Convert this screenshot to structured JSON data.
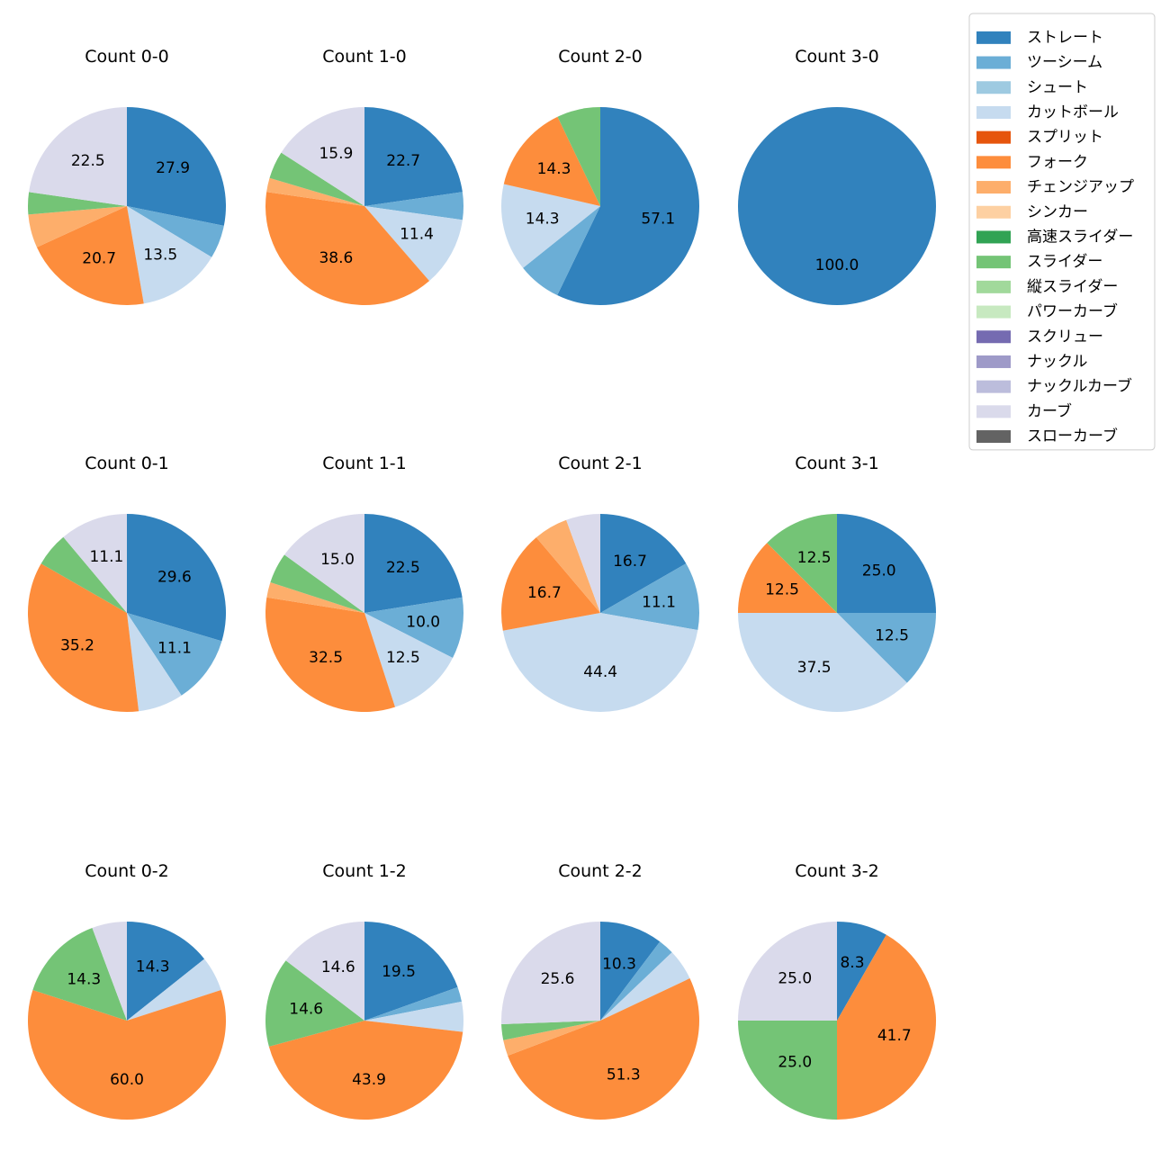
{
  "chart_data": {
    "type": "pie",
    "legend": {
      "placement": "top-right",
      "entries": [
        {
          "name": "ストレート",
          "color": "#3182bd"
        },
        {
          "name": "ツーシーム",
          "color": "#6baed6"
        },
        {
          "name": "シュート",
          "color": "#9ecae1"
        },
        {
          "name": "カットボール",
          "color": "#c6dbef"
        },
        {
          "name": "スプリット",
          "color": "#e6550d"
        },
        {
          "name": "フォーク",
          "color": "#fd8d3c"
        },
        {
          "name": "チェンジアップ",
          "color": "#fdae6b"
        },
        {
          "name": "シンカー",
          "color": "#fdd0a2"
        },
        {
          "name": "高速スライダー",
          "color": "#31a354"
        },
        {
          "name": "スライダー",
          "color": "#74c476"
        },
        {
          "name": "縦スライダー",
          "color": "#a1d99b"
        },
        {
          "name": "パワーカーブ",
          "color": "#c7e9c0"
        },
        {
          "name": "スクリュー",
          "color": "#756bb1"
        },
        {
          "name": "ナックル",
          "color": "#9e9ac8"
        },
        {
          "name": "ナックルカーブ",
          "color": "#bcbddc"
        },
        {
          "name": "カーブ",
          "color": "#dadaeb"
        },
        {
          "name": "スローカーブ",
          "color": "#636363"
        }
      ]
    },
    "charts": [
      {
        "title": "Count 0-0",
        "slices": [
          {
            "name": "ストレート",
            "value": 27.9,
            "label": "27.9"
          },
          {
            "name": "ツーシーム",
            "value": 5.4,
            "label": ""
          },
          {
            "name": "カットボール",
            "value": 13.5,
            "label": "13.5"
          },
          {
            "name": "フォーク",
            "value": 20.7,
            "label": "20.7"
          },
          {
            "name": "チェンジアップ",
            "value": 5.4,
            "label": ""
          },
          {
            "name": "スライダー",
            "value": 3.6,
            "label": ""
          },
          {
            "name": "カーブ",
            "value": 22.5,
            "label": "22.5"
          }
        ]
      },
      {
        "title": "Count 1-0",
        "slices": [
          {
            "name": "ストレート",
            "value": 22.7,
            "label": "22.7"
          },
          {
            "name": "ツーシーム",
            "value": 4.5,
            "label": ""
          },
          {
            "name": "カットボール",
            "value": 11.4,
            "label": "11.4"
          },
          {
            "name": "フォーク",
            "value": 38.6,
            "label": "38.6"
          },
          {
            "name": "チェンジアップ",
            "value": 2.3,
            "label": ""
          },
          {
            "name": "スライダー",
            "value": 4.5,
            "label": ""
          },
          {
            "name": "カーブ",
            "value": 15.9,
            "label": "15.9"
          }
        ]
      },
      {
        "title": "Count 2-0",
        "slices": [
          {
            "name": "ストレート",
            "value": 57.1,
            "label": "57.1"
          },
          {
            "name": "ツーシーム",
            "value": 7.1,
            "label": ""
          },
          {
            "name": "カットボール",
            "value": 14.3,
            "label": "14.3"
          },
          {
            "name": "フォーク",
            "value": 14.3,
            "label": "14.3"
          },
          {
            "name": "スライダー",
            "value": 7.1,
            "label": ""
          }
        ]
      },
      {
        "title": "Count 3-0",
        "slices": [
          {
            "name": "ストレート",
            "value": 100.0,
            "label": "100.0"
          }
        ]
      },
      {
        "title": "Count 0-1",
        "slices": [
          {
            "name": "ストレート",
            "value": 29.6,
            "label": "29.6"
          },
          {
            "name": "ツーシーム",
            "value": 11.1,
            "label": "11.1"
          },
          {
            "name": "カットボール",
            "value": 7.4,
            "label": ""
          },
          {
            "name": "フォーク",
            "value": 35.2,
            "label": "35.2"
          },
          {
            "name": "スライダー",
            "value": 5.6,
            "label": ""
          },
          {
            "name": "カーブ",
            "value": 11.1,
            "label": "11.1"
          }
        ]
      },
      {
        "title": "Count 1-1",
        "slices": [
          {
            "name": "ストレート",
            "value": 22.5,
            "label": "22.5"
          },
          {
            "name": "ツーシーム",
            "value": 10.0,
            "label": "10.0"
          },
          {
            "name": "カットボール",
            "value": 12.5,
            "label": "12.5"
          },
          {
            "name": "フォーク",
            "value": 32.5,
            "label": "32.5"
          },
          {
            "name": "チェンジアップ",
            "value": 2.5,
            "label": ""
          },
          {
            "name": "スライダー",
            "value": 5.0,
            "label": ""
          },
          {
            "name": "カーブ",
            "value": 15.0,
            "label": "15.0"
          }
        ]
      },
      {
        "title": "Count 2-1",
        "slices": [
          {
            "name": "ストレート",
            "value": 16.7,
            "label": "16.7"
          },
          {
            "name": "ツーシーム",
            "value": 11.1,
            "label": "11.1"
          },
          {
            "name": "カットボール",
            "value": 44.4,
            "label": "44.4"
          },
          {
            "name": "フォーク",
            "value": 16.7,
            "label": "16.7"
          },
          {
            "name": "チェンジアップ",
            "value": 5.6,
            "label": ""
          },
          {
            "name": "カーブ",
            "value": 5.6,
            "label": ""
          }
        ]
      },
      {
        "title": "Count 3-1",
        "slices": [
          {
            "name": "ストレート",
            "value": 25.0,
            "label": "25.0"
          },
          {
            "name": "ツーシーム",
            "value": 12.5,
            "label": "12.5"
          },
          {
            "name": "カットボール",
            "value": 37.5,
            "label": "37.5"
          },
          {
            "name": "フォーク",
            "value": 12.5,
            "label": "12.5"
          },
          {
            "name": "スライダー",
            "value": 12.5,
            "label": "12.5"
          }
        ]
      },
      {
        "title": "Count 0-2",
        "slices": [
          {
            "name": "ストレート",
            "value": 14.3,
            "label": "14.3"
          },
          {
            "name": "カットボール",
            "value": 5.7,
            "label": ""
          },
          {
            "name": "フォーク",
            "value": 60.0,
            "label": "60.0"
          },
          {
            "name": "スライダー",
            "value": 14.3,
            "label": "14.3"
          },
          {
            "name": "カーブ",
            "value": 5.7,
            "label": ""
          }
        ]
      },
      {
        "title": "Count 1-2",
        "slices": [
          {
            "name": "ストレート",
            "value": 19.5,
            "label": "19.5"
          },
          {
            "name": "ツーシーム",
            "value": 2.4,
            "label": ""
          },
          {
            "name": "カットボール",
            "value": 4.9,
            "label": ""
          },
          {
            "name": "フォーク",
            "value": 43.9,
            "label": "43.9"
          },
          {
            "name": "スライダー",
            "value": 14.6,
            "label": "14.6"
          },
          {
            "name": "カーブ",
            "value": 14.6,
            "label": "14.6"
          }
        ]
      },
      {
        "title": "Count 2-2",
        "slices": [
          {
            "name": "ストレート",
            "value": 10.3,
            "label": "10.3"
          },
          {
            "name": "ツーシーム",
            "value": 2.6,
            "label": ""
          },
          {
            "name": "カットボール",
            "value": 5.1,
            "label": ""
          },
          {
            "name": "フォーク",
            "value": 51.3,
            "label": "51.3"
          },
          {
            "name": "チェンジアップ",
            "value": 2.6,
            "label": ""
          },
          {
            "name": "スライダー",
            "value": 2.6,
            "label": ""
          },
          {
            "name": "カーブ",
            "value": 25.6,
            "label": "25.6"
          }
        ]
      },
      {
        "title": "Count 3-2",
        "slices": [
          {
            "name": "ストレート",
            "value": 8.3,
            "label": "8.3"
          },
          {
            "name": "フォーク",
            "value": 41.7,
            "label": "41.7"
          },
          {
            "name": "スライダー",
            "value": 25.0,
            "label": "25.0"
          },
          {
            "name": "カーブ",
            "value": 25.0,
            "label": "25.0"
          }
        ]
      }
    ]
  }
}
